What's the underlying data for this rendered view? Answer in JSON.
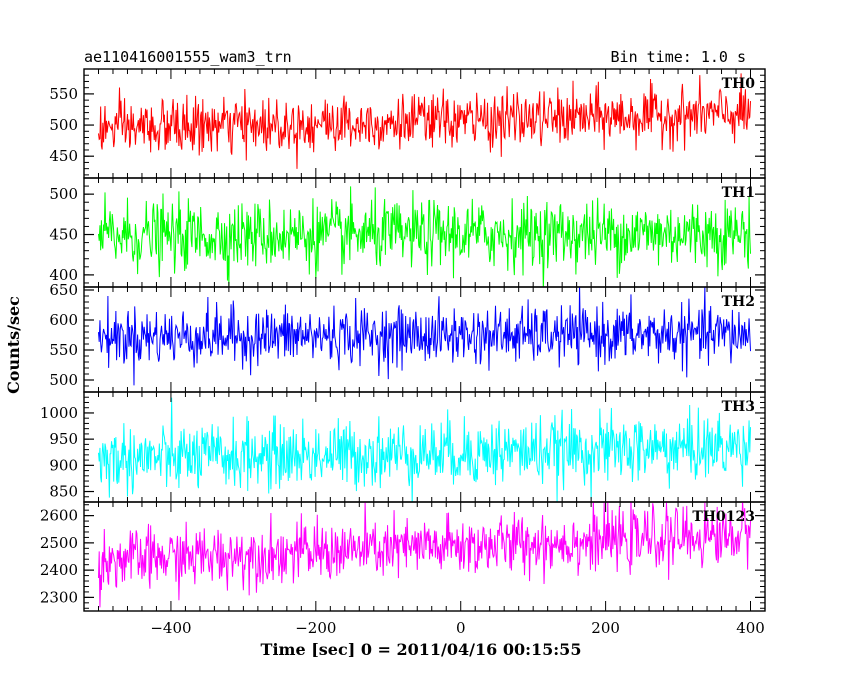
{
  "chart_data": {
    "type": "line",
    "title_left": "ae110416001555_wam3_trn",
    "title_right": "Bin time: 1.0 s",
    "xlabel": "Time [sec] 0 = 2011/04/16 00:15:55",
    "ylabel": "Counts/sec",
    "xlim": [
      -520,
      420
    ],
    "x_ticks": [
      -400,
      -200,
      0,
      200,
      400
    ],
    "x_tick_labels": [
      "−400",
      "−200",
      "0",
      "200",
      "400"
    ],
    "data_x_range": [
      -500,
      400
    ],
    "bin_time_s": 1.0,
    "grid": false,
    "series": [
      {
        "name": "TH0",
        "color": "#ff0000",
        "ylim": [
          415,
          590
        ],
        "y_ticks": [
          450,
          500,
          550
        ],
        "mean_start": 494,
        "mean_end": 518,
        "noise": 22,
        "trend": "rising"
      },
      {
        "name": "TH1",
        "color": "#00ff00",
        "ylim": [
          385,
          520
        ],
        "y_ticks": [
          400,
          450,
          500
        ],
        "mean_start": 448,
        "mean_end": 452,
        "noise": 21,
        "trend": "flat"
      },
      {
        "name": "TH2",
        "color": "#0000ff",
        "ylim": [
          480,
          655
        ],
        "y_ticks": [
          500,
          550,
          600,
          650
        ],
        "mean_start": 572,
        "mean_end": 576,
        "noise": 24,
        "trend": "flat"
      },
      {
        "name": "TH3",
        "color": "#00ffff",
        "ylim": [
          830,
          1040
        ],
        "y_ticks": [
          850,
          900,
          950,
          1000
        ],
        "mean_start": 912,
        "mean_end": 935,
        "noise": 32,
        "trend": "slightly rising"
      },
      {
        "name": "TH0123",
        "color": "#ff00ff",
        "ylim": [
          2250,
          2650
        ],
        "y_ticks": [
          2300,
          2400,
          2500,
          2600
        ],
        "mean_start": 2435,
        "mean_end": 2530,
        "noise": 55,
        "trend": "rising"
      }
    ]
  }
}
